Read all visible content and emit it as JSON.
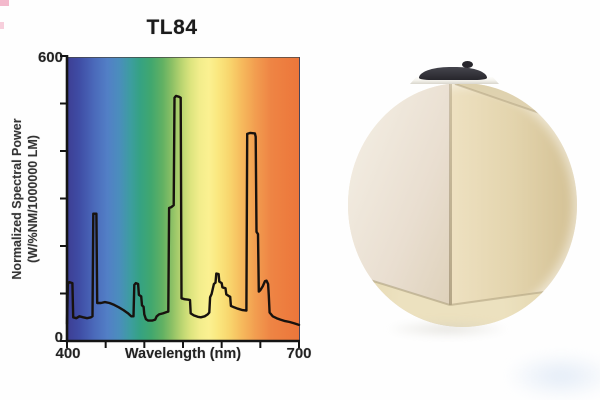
{
  "colors": {
    "page-bg": "#fefefe",
    "chart-line": "#18120e",
    "axis": "#141414",
    "booth-left-wall-light": "#f2ece1",
    "booth-left-wall-dark": "#ddd0b8",
    "booth-right-wall-light": "#eee1c1",
    "booth-right-wall-dark": "#d3c093",
    "booth-ceiling": "#e2d5b5",
    "booth-floor-light": "#ece1bf",
    "booth-floor-dark": "#decfa4",
    "booth-edge-line": "#a89a78",
    "fixture-dark": "#27262c",
    "fixture-band": "#f4f2ec",
    "artifact-pink": "#f0a8bf"
  },
  "chart_data": {
    "type": "line",
    "title": "TL84",
    "xlabel": "Wavelength (nm)",
    "ylabel": "Normalized Spectral Power (W/%NM/1000000 LM)",
    "ylabel_lines": [
      "Normalized Spectral Power",
      "(W/%NM/1000000 LM)"
    ],
    "xlim": [
      400,
      700
    ],
    "ylim": [
      0,
      600
    ],
    "x_ticks": [
      400,
      450,
      500,
      550,
      600,
      650,
      700
    ],
    "y_ticks": [
      0,
      100,
      200,
      300,
      400,
      500,
      600
    ],
    "x_tick_labels_visible": [
      "400",
      "700"
    ],
    "y_tick_labels_visible": [
      "600",
      "0"
    ],
    "grid": false,
    "legend": null,
    "background": "visible-spectrum-gradient",
    "spectrum_gradient_stops": [
      {
        "pos": 0,
        "color": "#3d3f95"
      },
      {
        "pos": 5,
        "color": "#3f4da5"
      },
      {
        "pos": 11,
        "color": "#4a68b9"
      },
      {
        "pos": 17,
        "color": "#527fc6"
      },
      {
        "pos": 22,
        "color": "#4b8dbd"
      },
      {
        "pos": 27,
        "color": "#3d9da0"
      },
      {
        "pos": 31,
        "color": "#35a284"
      },
      {
        "pos": 36,
        "color": "#41a76e"
      },
      {
        "pos": 41,
        "color": "#62b163"
      },
      {
        "pos": 45,
        "color": "#8cc065"
      },
      {
        "pos": 49,
        "color": "#b8d470"
      },
      {
        "pos": 53,
        "color": "#dce47e"
      },
      {
        "pos": 57,
        "color": "#f2ed8c"
      },
      {
        "pos": 61,
        "color": "#fbf191"
      },
      {
        "pos": 65,
        "color": "#fae77f"
      },
      {
        "pos": 70,
        "color": "#f8d56d"
      },
      {
        "pos": 75,
        "color": "#f6bb5d"
      },
      {
        "pos": 81,
        "color": "#f29e50"
      },
      {
        "pos": 88,
        "color": "#ee8444"
      },
      {
        "pos": 100,
        "color": "#ec763a"
      }
    ],
    "series": [
      {
        "name": "TL84 normalized spectral power",
        "color": "#18120e",
        "points": [
          [
            400,
            36
          ],
          [
            401,
            120
          ],
          [
            403,
            124
          ],
          [
            407,
            122
          ],
          [
            408,
            50
          ],
          [
            412,
            48
          ],
          [
            416,
            52
          ],
          [
            421,
            50
          ],
          [
            426,
            48
          ],
          [
            431,
            50
          ],
          [
            433,
            52
          ],
          [
            434,
            268
          ],
          [
            438,
            268
          ],
          [
            439,
            80
          ],
          [
            444,
            80
          ],
          [
            449,
            82
          ],
          [
            455,
            80
          ],
          [
            461,
            76
          ],
          [
            467,
            71
          ],
          [
            473,
            65
          ],
          [
            479,
            58
          ],
          [
            483,
            52
          ],
          [
            486,
            52
          ],
          [
            487,
            118
          ],
          [
            489,
            122
          ],
          [
            492,
            120
          ],
          [
            493,
            97
          ],
          [
            496,
            94
          ],
          [
            497,
            75
          ],
          [
            499,
            72
          ],
          [
            500,
            56
          ],
          [
            502,
            46
          ],
          [
            505,
            43
          ],
          [
            510,
            43
          ],
          [
            514,
            45
          ],
          [
            516,
            52
          ],
          [
            519,
            56
          ],
          [
            524,
            58
          ],
          [
            529,
            61
          ],
          [
            531,
            62
          ],
          [
            532,
            280
          ],
          [
            535,
            282
          ],
          [
            538,
            286
          ],
          [
            539,
            512
          ],
          [
            541,
            516
          ],
          [
            545,
            514
          ],
          [
            547,
            512
          ],
          [
            548,
            90
          ],
          [
            552,
            88
          ],
          [
            557,
            87
          ],
          [
            559,
            86
          ],
          [
            560,
            58
          ],
          [
            564,
            54
          ],
          [
            569,
            51
          ],
          [
            573,
            50
          ],
          [
            578,
            52
          ],
          [
            582,
            56
          ],
          [
            584,
            60
          ],
          [
            585,
            92
          ],
          [
            587,
            99
          ],
          [
            590,
            120
          ],
          [
            592,
            123
          ],
          [
            593,
            142
          ],
          [
            596,
            141
          ],
          [
            597,
            125
          ],
          [
            600,
            122
          ],
          [
            601,
            113
          ],
          [
            605,
            111
          ],
          [
            606,
            98
          ],
          [
            609,
            95
          ],
          [
            611,
            93
          ],
          [
            612,
            74
          ],
          [
            616,
            71
          ],
          [
            621,
            68
          ],
          [
            627,
            65
          ],
          [
            632,
            64
          ],
          [
            633,
            436
          ],
          [
            637,
            438
          ],
          [
            643,
            437
          ],
          [
            644,
            430
          ],
          [
            645,
            230
          ],
          [
            647,
            225
          ],
          [
            648,
            104
          ],
          [
            650,
            107
          ],
          [
            653,
            115
          ],
          [
            656,
            126
          ],
          [
            658,
            127
          ],
          [
            660,
            120
          ],
          [
            661,
            96
          ],
          [
            662,
            60
          ],
          [
            666,
            52
          ],
          [
            671,
            48
          ],
          [
            676,
            45
          ],
          [
            682,
            42
          ],
          [
            688,
            40
          ],
          [
            694,
            37
          ],
          [
            700,
            34
          ]
        ]
      }
    ]
  },
  "photo": {
    "name": "light-booth-interior-photo",
    "shape": "circular-crop"
  }
}
